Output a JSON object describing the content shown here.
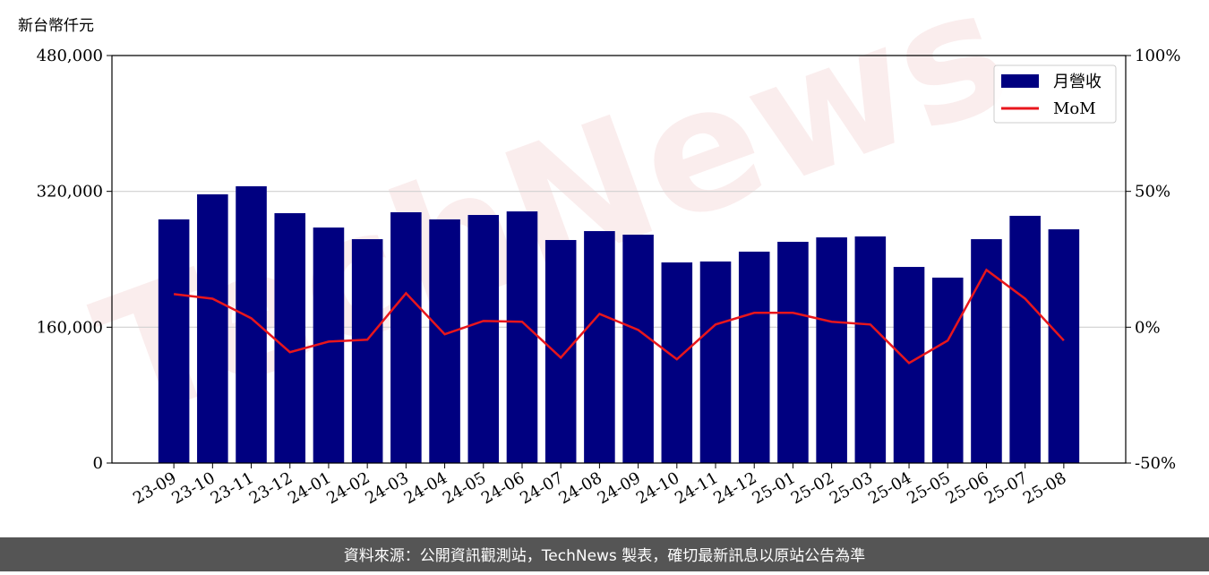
{
  "chart_data": {
    "type": "bar_line",
    "ylabel": "新台幣仟元",
    "watermark": "TechNews",
    "footer": "資料來源：公開資訊觀測站，TechNews 製表，確切最新訊息以原站公告為準",
    "categories": [
      "23-09",
      "23-10",
      "23-11",
      "23-12",
      "24-01",
      "24-02",
      "24-03",
      "24-04",
      "24-05",
      "24-06",
      "24-07",
      "24-08",
      "24-09",
      "24-10",
      "24-11",
      "24-12",
      "25-01",
      "25-02",
      "25-03",
      "25-04",
      "25-05",
      "25-06",
      "25-07",
      "25-08"
    ],
    "series": [
      {
        "name": "月營收",
        "color": "#000080",
        "type": "bar",
        "values": [
          287000,
          316500,
          326000,
          294300,
          277400,
          263700,
          295400,
          287000,
          292200,
          296400,
          262700,
          273200,
          269000,
          236300,
          237400,
          249000,
          260600,
          265800,
          266900,
          231000,
          218400,
          263700,
          291200,
          275300
        ]
      },
      {
        "name": "MoM",
        "color": "#e8161c",
        "type": "line",
        "axis": "y2",
        "values": [
          12.2,
          10.5,
          3.3,
          -9.2,
          -5.3,
          -4.6,
          12.5,
          -2.6,
          2.3,
          2.0,
          -11.2,
          4.9,
          -1.0,
          -11.8,
          1.0,
          5.3,
          5.3,
          2.0,
          1.0,
          -13.2,
          -4.9,
          21.1,
          10.5,
          -4.9
        ]
      }
    ],
    "ylim": [
      0,
      480000
    ],
    "yticks": [
      0,
      {
        "value": 160000,
        "label": "160,000"
      },
      {
        "value": 320000,
        "label": "320,000"
      },
      {
        "value": 480000,
        "label": "480,000"
      }
    ],
    "y2lim": [
      -50,
      100
    ],
    "y2ticks": [
      {
        "value": -50,
        "label": "-50%"
      },
      {
        "value": 0,
        "label": "0%"
      },
      {
        "value": 50,
        "label": "50%"
      },
      {
        "value": 100,
        "label": "100%"
      }
    ],
    "grid": true,
    "legend": "upper right"
  }
}
